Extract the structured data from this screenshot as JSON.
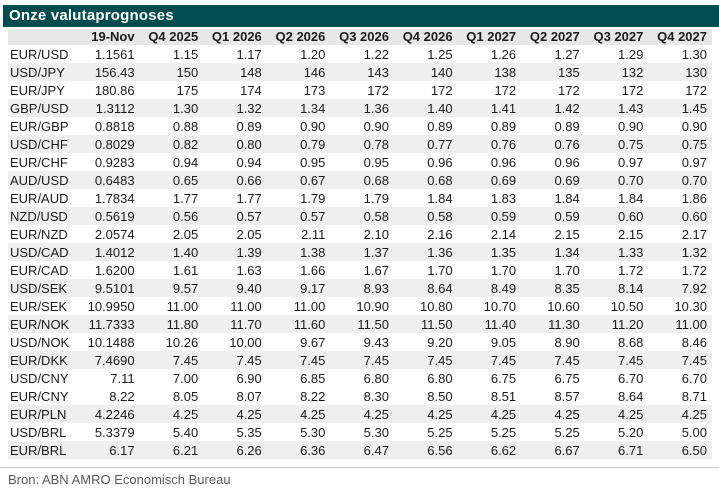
{
  "title": "Onze valutaprognoses",
  "source": "Bron: ABN AMRO Economisch Bureau",
  "colors": {
    "accent": "#004d4f",
    "stripe": "#efefef",
    "header_bg": "#e8e8e8"
  },
  "chart_data": {
    "type": "table",
    "title": "Onze valutaprognoses",
    "columns": [
      "",
      "19-Nov",
      "Q4 2025",
      "Q1 2026",
      "Q2 2026",
      "Q3 2026",
      "Q4 2026",
      "Q1 2027",
      "Q2 2027",
      "Q3 2027",
      "Q4 2027"
    ],
    "rows": [
      {
        "pair": "EUR/USD",
        "values": [
          "1.1561",
          "1.15",
          "1.17",
          "1.20",
          "1.22",
          "1.25",
          "1.26",
          "1.27",
          "1.29",
          "1.30"
        ]
      },
      {
        "pair": "USD/JPY",
        "values": [
          "156.43",
          "150",
          "148",
          "146",
          "143",
          "140",
          "138",
          "135",
          "132",
          "130"
        ]
      },
      {
        "pair": "EUR/JPY",
        "values": [
          "180.86",
          "175",
          "174",
          "173",
          "172",
          "172",
          "172",
          "172",
          "172",
          "172"
        ]
      },
      {
        "pair": "GBP/USD",
        "values": [
          "1.3112",
          "1.30",
          "1.32",
          "1.34",
          "1.36",
          "1.40",
          "1.41",
          "1.42",
          "1.43",
          "1.45"
        ]
      },
      {
        "pair": "EUR/GBP",
        "values": [
          "0.8818",
          "0.88",
          "0.89",
          "0.90",
          "0.90",
          "0.89",
          "0.89",
          "0.89",
          "0.90",
          "0.90"
        ]
      },
      {
        "pair": "USD/CHF",
        "values": [
          "0.8029",
          "0.82",
          "0.80",
          "0.79",
          "0.78",
          "0.77",
          "0.76",
          "0.76",
          "0.75",
          "0.75"
        ]
      },
      {
        "pair": "EUR/CHF",
        "values": [
          "0.9283",
          "0.94",
          "0.94",
          "0.95",
          "0.95",
          "0.96",
          "0.96",
          "0.96",
          "0.97",
          "0.97"
        ]
      },
      {
        "pair": "AUD/USD",
        "values": [
          "0.6483",
          "0.65",
          "0.66",
          "0.67",
          "0.68",
          "0.68",
          "0.69",
          "0.69",
          "0.70",
          "0.70"
        ]
      },
      {
        "pair": "EUR/AUD",
        "values": [
          "1.7834",
          "1.77",
          "1.77",
          "1.79",
          "1.79",
          "1.84",
          "1.83",
          "1.84",
          "1.84",
          "1.86"
        ]
      },
      {
        "pair": "NZD/USD",
        "values": [
          "0.5619",
          "0.56",
          "0.57",
          "0.57",
          "0.58",
          "0.58",
          "0.59",
          "0.59",
          "0.60",
          "0.60"
        ]
      },
      {
        "pair": "EUR/NZD",
        "values": [
          "2.0574",
          "2.05",
          "2.05",
          "2.11",
          "2.10",
          "2.16",
          "2.14",
          "2.15",
          "2.15",
          "2.17"
        ]
      },
      {
        "pair": "USD/CAD",
        "values": [
          "1.4012",
          "1.40",
          "1.39",
          "1.38",
          "1.37",
          "1.36",
          "1.35",
          "1.34",
          "1.33",
          "1.32"
        ]
      },
      {
        "pair": "EUR/CAD",
        "values": [
          "1.6200",
          "1.61",
          "1.63",
          "1.66",
          "1.67",
          "1.70",
          "1.70",
          "1.70",
          "1.72",
          "1.72"
        ]
      },
      {
        "pair": "USD/SEK",
        "values": [
          "9.5101",
          "9.57",
          "9.40",
          "9.17",
          "8.93",
          "8.64",
          "8.49",
          "8.35",
          "8.14",
          "7.92"
        ]
      },
      {
        "pair": "EUR/SEK",
        "values": [
          "10.9950",
          "11.00",
          "11.00",
          "11.00",
          "10.90",
          "10.80",
          "10.70",
          "10.60",
          "10.50",
          "10.30"
        ]
      },
      {
        "pair": "EUR/NOK",
        "values": [
          "11.7333",
          "11.80",
          "11.70",
          "11.60",
          "11.50",
          "11.50",
          "11.40",
          "11.30",
          "11.20",
          "11.00"
        ]
      },
      {
        "pair": "USD/NOK",
        "values": [
          "10.1488",
          "10.26",
          "10.00",
          "9.67",
          "9.43",
          "9.20",
          "9.05",
          "8.90",
          "8.68",
          "8.46"
        ]
      },
      {
        "pair": "EUR/DKK",
        "values": [
          "7.4690",
          "7.45",
          "7.45",
          "7.45",
          "7.45",
          "7.45",
          "7.45",
          "7.45",
          "7.45",
          "7.45"
        ]
      },
      {
        "pair": "USD/CNY",
        "values": [
          "7.11",
          "7.00",
          "6.90",
          "6.85",
          "6.80",
          "6.80",
          "6.75",
          "6.75",
          "6.70",
          "6.70"
        ]
      },
      {
        "pair": "EUR/CNY",
        "values": [
          "8.22",
          "8.05",
          "8.07",
          "8.22",
          "8.30",
          "8.50",
          "8.51",
          "8.57",
          "8.64",
          "8.71"
        ]
      },
      {
        "pair": "EUR/PLN",
        "values": [
          "4.2246",
          "4.25",
          "4.25",
          "4.25",
          "4.25",
          "4.25",
          "4.25",
          "4.25",
          "4.25",
          "4.25"
        ]
      },
      {
        "pair": "USD/BRL",
        "values": [
          "5.3379",
          "5.40",
          "5.35",
          "5.30",
          "5.30",
          "5.25",
          "5.25",
          "5.25",
          "5.20",
          "5.00"
        ]
      },
      {
        "pair": "EUR/BRL",
        "values": [
          "6.17",
          "6.21",
          "6.26",
          "6.36",
          "6.47",
          "6.56",
          "6.62",
          "6.67",
          "6.71",
          "6.50"
        ]
      }
    ]
  }
}
